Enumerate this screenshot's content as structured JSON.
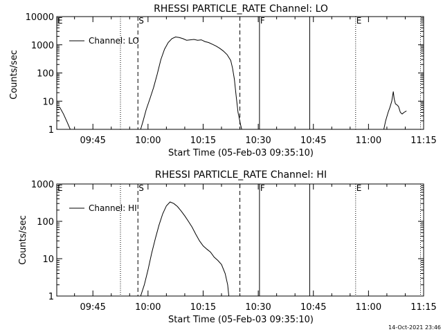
{
  "footer": {
    "timestamp": "14-Oct-2021 23:46"
  },
  "chart_data": [
    {
      "type": "line",
      "title": "RHESSI PARTICLE_RATE Channel: LO",
      "xlabel": "Start Time (05-Feb-03 09:35:10)",
      "ylabel": "Counts/sec",
      "ylog": true,
      "ylim": [
        1,
        10000
      ],
      "xlim": [
        "09:35:10",
        "11:15"
      ],
      "ytick_labels": [
        "1",
        "10",
        "100",
        "1000",
        "10000"
      ],
      "ytick_values": [
        1,
        10,
        100,
        1000,
        10000
      ],
      "xtick_labels": [
        "09:45",
        "10:00",
        "10:15",
        "10:30",
        "10:45",
        "11:00",
        "11:15"
      ],
      "legend": {
        "position": "top-left",
        "entries": [
          "Channel: LO"
        ]
      },
      "event_markers": [
        {
          "time": "09:35:10",
          "label": "E",
          "style": "dotted"
        },
        {
          "time": "09:52:30",
          "label": "",
          "style": "dotted"
        },
        {
          "time": "09:57:15",
          "label": "S",
          "style": "dashed"
        },
        {
          "time": "10:25:00",
          "label": "",
          "style": "dashed"
        },
        {
          "time": "10:30:20",
          "label": "F",
          "style": "solid"
        },
        {
          "time": "10:44:00",
          "label": "",
          "style": "solid"
        },
        {
          "time": "10:56:30",
          "label": "E",
          "style": "dotted"
        },
        {
          "time": "11:14:10",
          "label": "",
          "style": "dotted"
        }
      ],
      "series": [
        {
          "name": "Channel: LO",
          "segments": [
            [
              [
                "09:35:10",
                6
              ],
              [
                "09:36:00",
                6
              ],
              [
                "09:37:00",
                3.5
              ],
              [
                "09:38:00",
                1.8
              ],
              [
                "09:38:50",
                1
              ]
            ],
            [
              [
                "09:58:00",
                1
              ],
              [
                "09:58:40",
                2
              ],
              [
                "09:59:30",
                5
              ],
              [
                "10:00:30",
                12
              ],
              [
                "10:01:30",
                30
              ],
              [
                "10:02:30",
                90
              ],
              [
                "10:03:30",
                300
              ],
              [
                "10:04:30",
                700
              ],
              [
                "10:05:30",
                1200
              ],
              [
                "10:06:30",
                1650
              ],
              [
                "10:07:30",
                1900
              ],
              [
                "10:08:30",
                1800
              ],
              [
                "10:09:30",
                1650
              ],
              [
                "10:10:30",
                1450
              ],
              [
                "10:11:30",
                1500
              ],
              [
                "10:12:30",
                1550
              ],
              [
                "10:13:30",
                1450
              ],
              [
                "10:14:30",
                1500
              ],
              [
                "10:15:30",
                1300
              ],
              [
                "10:16:30",
                1200
              ],
              [
                "10:17:30",
                1050
              ],
              [
                "10:18:30",
                900
              ],
              [
                "10:19:30",
                750
              ],
              [
                "10:20:30",
                600
              ],
              [
                "10:21:30",
                450
              ],
              [
                "10:22:30",
                280
              ],
              [
                "10:23:00",
                150
              ],
              [
                "10:23:30",
                60
              ],
              [
                "10:24:00",
                15
              ],
              [
                "10:24:30",
                4
              ],
              [
                "10:25:10",
                1.5
              ],
              [
                "10:25:30",
                1
              ]
            ],
            [
              [
                "11:04:10",
                1
              ],
              [
                "11:04:40",
                2
              ],
              [
                "11:05:20",
                4
              ],
              [
                "11:05:50",
                6
              ],
              [
                "11:06:20",
                10
              ],
              [
                "11:06:45",
                22
              ],
              [
                "11:07:00",
                12
              ],
              [
                "11:07:20",
                8
              ],
              [
                "11:07:40",
                7.5
              ],
              [
                "11:08:10",
                6.5
              ],
              [
                "11:08:40",
                4
              ],
              [
                "11:09:10",
                3.5
              ],
              [
                "11:09:40",
                4
              ],
              [
                "11:10:20",
                4.5
              ]
            ]
          ]
        }
      ]
    },
    {
      "type": "line",
      "title": "RHESSI PARTICLE_RATE Channel: HI",
      "xlabel": "Start Time (05-Feb-03 09:35:10)",
      "ylabel": "Counts/sec",
      "ylog": true,
      "ylim": [
        1,
        1000
      ],
      "xlim": [
        "09:35:10",
        "11:15"
      ],
      "ytick_labels": [
        "1",
        "10",
        "100",
        "1000"
      ],
      "ytick_values": [
        1,
        10,
        100,
        1000
      ],
      "xtick_labels": [
        "09:45",
        "10:00",
        "10:15",
        "10:30",
        "10:45",
        "11:00",
        "11:15"
      ],
      "legend": {
        "position": "top-left",
        "entries": [
          "Channel: HI"
        ]
      },
      "event_markers": [
        {
          "time": "09:35:10",
          "label": "E",
          "style": "dotted"
        },
        {
          "time": "09:52:30",
          "label": "",
          "style": "dotted"
        },
        {
          "time": "09:57:15",
          "label": "S",
          "style": "dashed"
        },
        {
          "time": "10:25:00",
          "label": "",
          "style": "dashed"
        },
        {
          "time": "10:30:20",
          "label": "F",
          "style": "solid"
        },
        {
          "time": "10:44:00",
          "label": "",
          "style": "solid"
        },
        {
          "time": "10:56:30",
          "label": "E",
          "style": "dotted"
        },
        {
          "time": "11:14:10",
          "label": "",
          "style": "dotted"
        }
      ],
      "series": [
        {
          "name": "Channel: HI",
          "segments": [
            [
              [
                "09:58:00",
                1
              ],
              [
                "09:59:00",
                2
              ],
              [
                "10:00:00",
                5
              ],
              [
                "10:01:00",
                14
              ],
              [
                "10:02:00",
                35
              ],
              [
                "10:03:00",
                80
              ],
              [
                "10:04:00",
                160
              ],
              [
                "10:05:00",
                260
              ],
              [
                "10:06:00",
                330
              ],
              [
                "10:07:00",
                300
              ],
              [
                "10:08:00",
                250
              ],
              [
                "10:09:00",
                190
              ],
              [
                "10:10:00",
                140
              ],
              [
                "10:11:00",
                100
              ],
              [
                "10:12:00",
                70
              ],
              [
                "10:13:00",
                45
              ],
              [
                "10:14:00",
                30
              ],
              [
                "10:15:00",
                22
              ],
              [
                "10:16:00",
                18
              ],
              [
                "10:17:00",
                15
              ],
              [
                "10:18:00",
                11
              ],
              [
                "10:19:00",
                9
              ],
              [
                "10:20:00",
                7
              ],
              [
                "10:21:00",
                4
              ],
              [
                "10:21:40",
                2
              ],
              [
                "10:22:00",
                1
              ]
            ]
          ]
        }
      ]
    }
  ]
}
